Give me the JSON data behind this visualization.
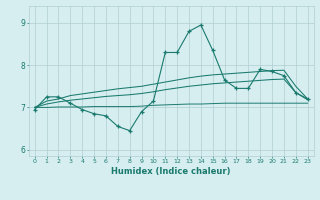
{
  "x": [
    0,
    1,
    2,
    3,
    4,
    5,
    6,
    7,
    8,
    9,
    10,
    11,
    12,
    13,
    14,
    15,
    16,
    17,
    18,
    19,
    20,
    21,
    22,
    23
  ],
  "main_line": [
    6.95,
    7.25,
    7.25,
    7.1,
    6.95,
    6.85,
    6.8,
    6.55,
    6.45,
    6.9,
    7.15,
    8.3,
    8.3,
    8.8,
    8.95,
    8.35,
    7.65,
    7.45,
    7.45,
    7.9,
    7.85,
    7.75,
    7.35,
    7.2
  ],
  "trend_upper": [
    7.0,
    7.15,
    7.2,
    7.28,
    7.32,
    7.36,
    7.4,
    7.44,
    7.47,
    7.5,
    7.55,
    7.6,
    7.65,
    7.7,
    7.74,
    7.77,
    7.79,
    7.81,
    7.83,
    7.85,
    7.87,
    7.88,
    7.5,
    7.2
  ],
  "trend_lower": [
    7.0,
    7.08,
    7.13,
    7.17,
    7.2,
    7.23,
    7.26,
    7.28,
    7.3,
    7.33,
    7.37,
    7.42,
    7.46,
    7.5,
    7.53,
    7.56,
    7.58,
    7.6,
    7.62,
    7.64,
    7.66,
    7.67,
    7.35,
    7.18
  ],
  "flat_line": [
    7.0,
    7.0,
    7.01,
    7.01,
    7.01,
    7.02,
    7.02,
    7.02,
    7.02,
    7.03,
    7.05,
    7.06,
    7.07,
    7.08,
    7.08,
    7.09,
    7.1,
    7.1,
    7.1,
    7.1,
    7.1,
    7.1,
    7.1,
    7.1
  ],
  "ylim": [
    5.85,
    9.4
  ],
  "yticks": [
    6,
    7,
    8,
    9
  ],
  "xticks": [
    0,
    1,
    2,
    3,
    4,
    5,
    6,
    7,
    8,
    9,
    10,
    11,
    12,
    13,
    14,
    15,
    16,
    17,
    18,
    19,
    20,
    21,
    22,
    23
  ],
  "xlabel": "Humidex (Indice chaleur)",
  "line_color": "#1a7a6e",
  "bg_color": "#d6eef0",
  "grid_color": "#b0cdd0"
}
